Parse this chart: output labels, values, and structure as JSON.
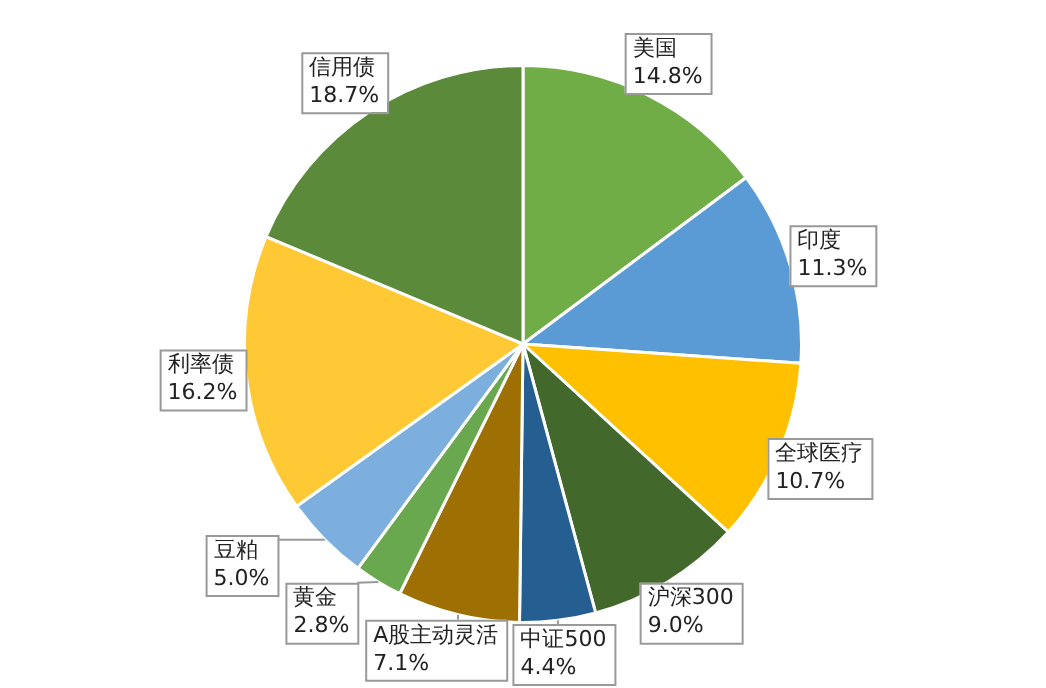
{
  "chart_data": {
    "type": "pie",
    "categories": [
      "美国",
      "印度",
      "全球医疗",
      "沪深300",
      "中证500",
      "A股主动灵活",
      "黄金",
      "豆粕",
      "利率债",
      "信用债"
    ],
    "values": [
      14.8,
      11.3,
      10.7,
      9.0,
      4.4,
      7.1,
      2.8,
      5.0,
      16.2,
      18.7
    ],
    "value_labels": [
      "14.8%",
      "11.3%",
      "10.7%",
      "9.0%",
      "4.4%",
      "7.1%",
      "2.8%",
      "5.0%",
      "16.2%",
      "18.7%"
    ],
    "colors": [
      "#70ad47",
      "#5b9bd5",
      "#ffc000",
      "#43682b",
      "#255e91",
      "#9e7004",
      "#6aa84f",
      "#7cafdd",
      "#ffc935",
      "#5b8a3a"
    ],
    "legend": false
  }
}
